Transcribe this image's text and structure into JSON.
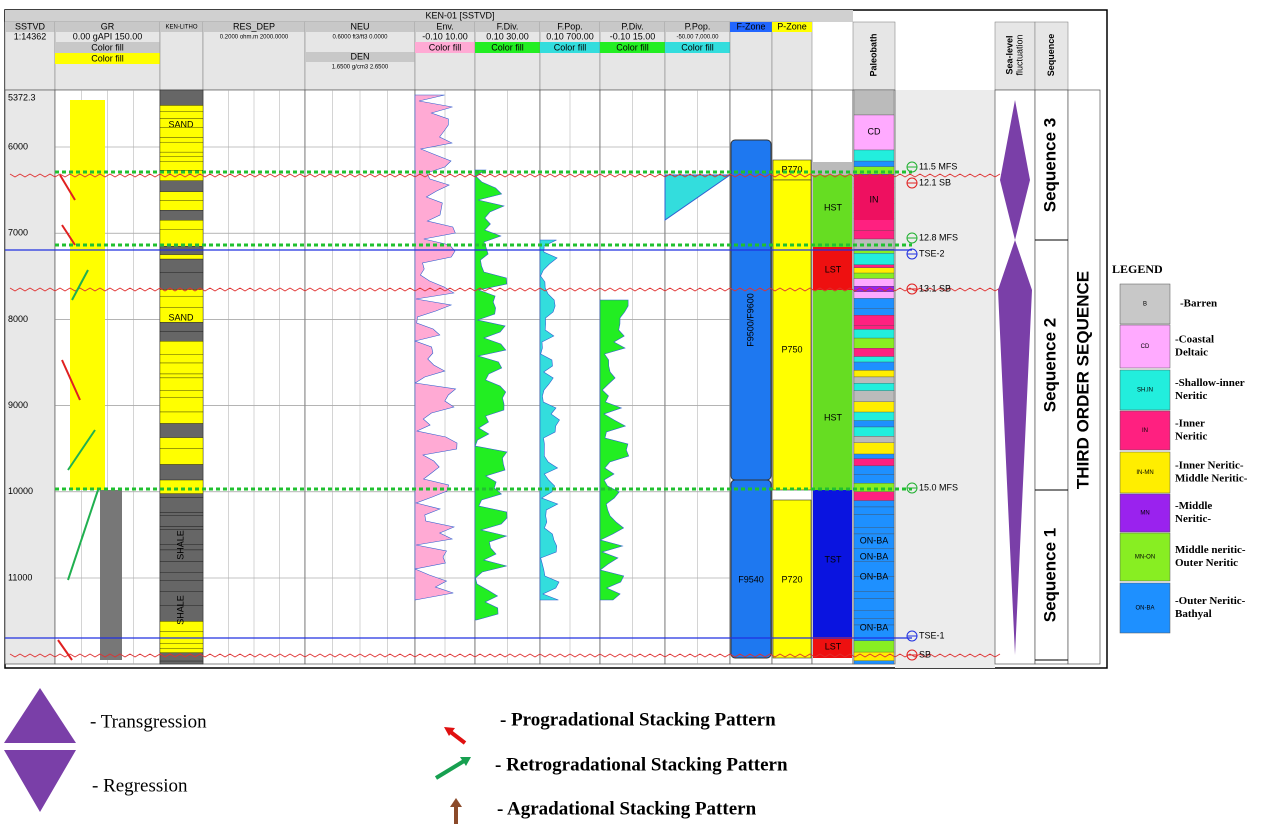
{
  "header": {
    "title": "KEN-01 [SSTVD]"
  },
  "tracks": [
    {
      "name": "SSTVD",
      "scale": "1:14362"
    },
    {
      "name": "GR",
      "scale": "0.00  gAPI  150.00",
      "fills": [
        "Color fill",
        "Color fill"
      ]
    },
    {
      "name": "KEN-LITHO"
    },
    {
      "name": "RES_DEP",
      "scale": "0.2000 ohm.m 2000.0000"
    },
    {
      "name": "NEU",
      "scale": "0.6000 ft3/ft3 0.0000",
      "name2": "DEN",
      "scale2": "1.6500 g/cm3 2.6500"
    },
    {
      "name": "Env.",
      "scale": "-0.10  10.00",
      "fills": [
        "Color fill"
      ]
    },
    {
      "name": "F.Div.",
      "scale": "0.10  30.00",
      "fills": [
        "Color fill"
      ]
    },
    {
      "name": "F.Pop.",
      "scale": "0.10  700.00",
      "fills": [
        "Color fill"
      ]
    },
    {
      "name": "P.Div.",
      "scale": "-0.10  15.00",
      "fills": [
        "Color fill"
      ]
    },
    {
      "name": "P.Pop.",
      "scale": "-50.00  7,000.00",
      "fills": [
        "Color fill"
      ]
    },
    {
      "name": "F-Zone"
    },
    {
      "name": "P-Zone"
    },
    {
      "name": "Paleobath"
    },
    {
      "name": "Sea-level",
      "name2": "fluctuation"
    },
    {
      "name": "Sequence"
    }
  ],
  "depth_ticks": [
    5372.3,
    6000,
    7000,
    8000,
    9000,
    10000,
    11000
  ],
  "lithology_labels": [
    "SAND",
    "SAND",
    "SHALE",
    "SHALE"
  ],
  "f_zones": [
    "F9500/F9600",
    "F9540"
  ],
  "p_zones": [
    "P770",
    "P750",
    "P720"
  ],
  "systems_tracts": [
    "HST",
    "LST",
    "HST",
    "TST",
    "LST"
  ],
  "paleobath_labels": [
    "CD",
    "IN",
    "ON-BA",
    "ON-BA",
    "ON-BA",
    "ON-BA"
  ],
  "surfaces": [
    "11.5 MFS",
    "12.1 SB",
    "12.8 MFS",
    "TSE-2",
    "13.1 SB",
    "15.0 MFS",
    "TSE-1",
    "SB"
  ],
  "sequences": [
    "Sequence 3",
    "Sequence 2",
    "Sequence 1"
  ],
  "third_order": "THIRD ORDER SEQUENCE",
  "legend": {
    "title": "LEGEND",
    "items": [
      {
        "code": "B",
        "lines": [
          "-Barren"
        ]
      },
      {
        "code": "CD",
        "lines": [
          "-Coastal",
          "Deltaic"
        ]
      },
      {
        "code": "SH.IN",
        "lines": [
          "-Shallow-inner",
          "Neritic"
        ]
      },
      {
        "code": "IN",
        "lines": [
          "-Inner",
          "Neritic"
        ]
      },
      {
        "code": "IN-MN",
        "lines": [
          "-Inner Neritic-",
          "Middle Neritic-"
        ]
      },
      {
        "code": "MN",
        "lines": [
          "-Middle",
          "Neritic-"
        ]
      },
      {
        "code": "MN-ON",
        "lines": [
          "Middle neritic-",
          "Outer Neritic"
        ]
      },
      {
        "code": "ON-BA",
        "lines": [
          "-Outer Neritic-",
          "Bathyal"
        ]
      }
    ]
  },
  "key": [
    "- Transgression",
    "- Regression",
    "- Progradational Stacking Pattern",
    "- Retrogradational Stacking Pattern",
    "- Agradational Stacking Pattern"
  ]
}
